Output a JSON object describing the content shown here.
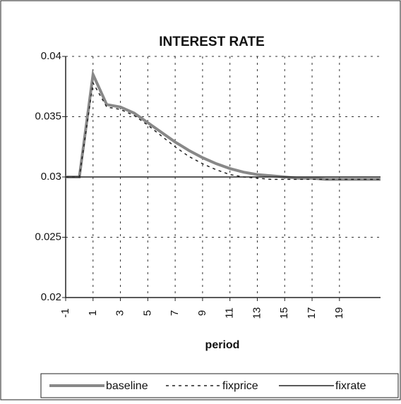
{
  "chart_data": {
    "type": "line",
    "title": "INTEREST RATE",
    "x_label": "period",
    "x": [
      -1,
      0,
      1,
      2,
      3,
      4,
      5,
      6,
      7,
      8,
      9,
      10,
      11,
      12,
      13,
      14,
      15,
      16,
      17,
      18,
      19,
      20,
      21,
      22
    ],
    "xlim": [
      -1,
      22
    ],
    "xticks": [
      -1,
      1,
      3,
      5,
      7,
      9,
      11,
      13,
      15,
      17,
      19
    ],
    "ylim": [
      0.02,
      0.04
    ],
    "yticks": [
      0.02,
      0.025,
      0.03,
      0.035,
      0.04
    ],
    "grid": true,
    "legend": "bottom",
    "series": [
      {
        "name": "baseline",
        "color": "#888888",
        "style": "thick",
        "values": [
          0.03,
          0.03,
          0.0385,
          0.036,
          0.0358,
          0.0353,
          0.0345,
          0.0337,
          0.0329,
          0.0322,
          0.0316,
          0.0311,
          0.0307,
          0.0304,
          0.0302,
          0.0301,
          0.03,
          0.0299,
          0.0299,
          0.0298,
          0.0298,
          0.0298,
          0.0298,
          0.0298
        ]
      },
      {
        "name": "fixprice",
        "color": "#222222",
        "style": "dashed",
        "values": [
          0.03,
          0.03,
          0.0378,
          0.0358,
          0.0356,
          0.0351,
          0.0343,
          0.0334,
          0.0325,
          0.0317,
          0.0311,
          0.0306,
          0.0302,
          0.03,
          0.0299,
          0.0298,
          0.0298,
          0.0298,
          0.0298,
          0.0298,
          0.0298,
          0.0298,
          0.0298,
          0.0298
        ]
      },
      {
        "name": "fixrate",
        "color": "#222222",
        "style": "solid",
        "values": [
          0.03,
          0.03,
          0.03,
          0.03,
          0.03,
          0.03,
          0.03,
          0.03,
          0.03,
          0.03,
          0.03,
          0.03,
          0.03,
          0.03,
          0.03,
          0.03,
          0.03,
          0.03,
          0.03,
          0.03,
          0.03,
          0.03,
          0.03,
          0.03
        ]
      }
    ]
  }
}
